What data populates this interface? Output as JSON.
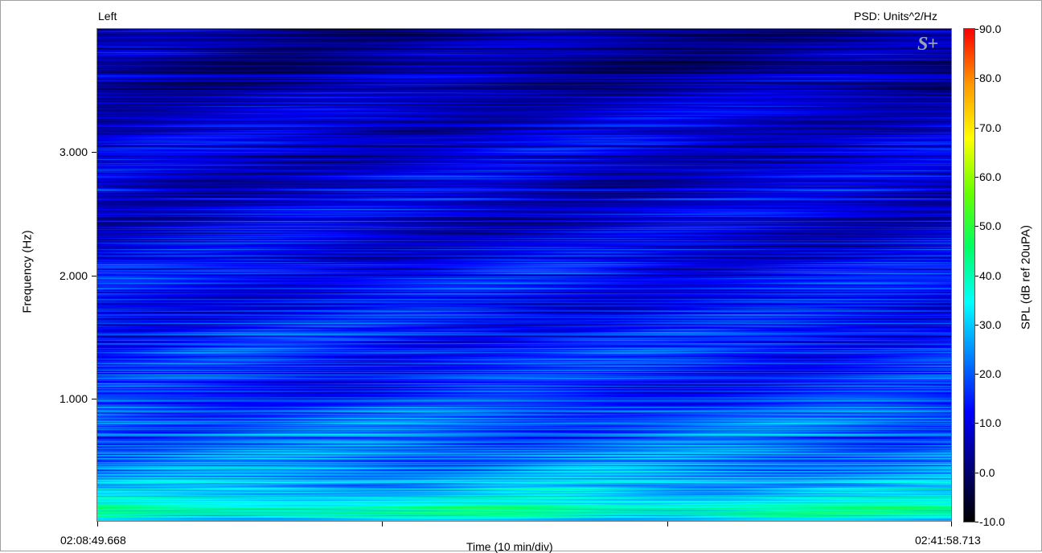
{
  "chart_data": {
    "type": "heatmap",
    "channel_label": "Left",
    "psd_label": "PSD: Units^2/Hz",
    "xlabel": "Time (10 min/div)",
    "ylabel": "Frequency (Hz)",
    "x_start_label": "02:08:49.668",
    "x_end_label": "02:41:58.713",
    "xlim": [
      "02:08:49.668",
      "02:41:58.713"
    ],
    "ylim": [
      0,
      4000
    ],
    "y_ticks": [
      {
        "value": 1000,
        "label": "1.000"
      },
      {
        "value": 2000,
        "label": "2.000"
      },
      {
        "value": 3000,
        "label": "3.000"
      }
    ],
    "x_division_minutes": 10,
    "colorbar": {
      "label": "SPL (dB ref 20uPA)",
      "range": [
        -10,
        90
      ],
      "ticks": [
        {
          "value": 90,
          "label": "90.0"
        },
        {
          "value": 80,
          "label": "80.0"
        },
        {
          "value": 70,
          "label": "70.0"
        },
        {
          "value": 60,
          "label": "60.0"
        },
        {
          "value": 50,
          "label": "50.0"
        },
        {
          "value": 40,
          "label": "40.0"
        },
        {
          "value": 30,
          "label": "30.0"
        },
        {
          "value": 20,
          "label": "20.0"
        },
        {
          "value": 10,
          "label": "10.0"
        },
        {
          "value": 0,
          "label": "0.0"
        },
        {
          "value": -10,
          "label": "-10.0"
        }
      ],
      "colormap": [
        "#000000",
        "#00007a",
        "#0000ff",
        "#0080ff",
        "#00ffff",
        "#00ff66",
        "#66ff00",
        "#ffff00",
        "#ff9900",
        "#ff0000"
      ]
    },
    "intensity_profile": [
      {
        "freq": 0,
        "spl": 30
      },
      {
        "freq": 80,
        "spl": 38
      },
      {
        "freq": 250,
        "spl": 30
      },
      {
        "freq": 500,
        "spl": 24
      },
      {
        "freq": 1000,
        "spl": 17
      },
      {
        "freq": 2000,
        "spl": 12
      },
      {
        "freq": 3000,
        "spl": 8
      },
      {
        "freq": 4000,
        "spl": 2
      }
    ]
  },
  "logo_text": "S+"
}
